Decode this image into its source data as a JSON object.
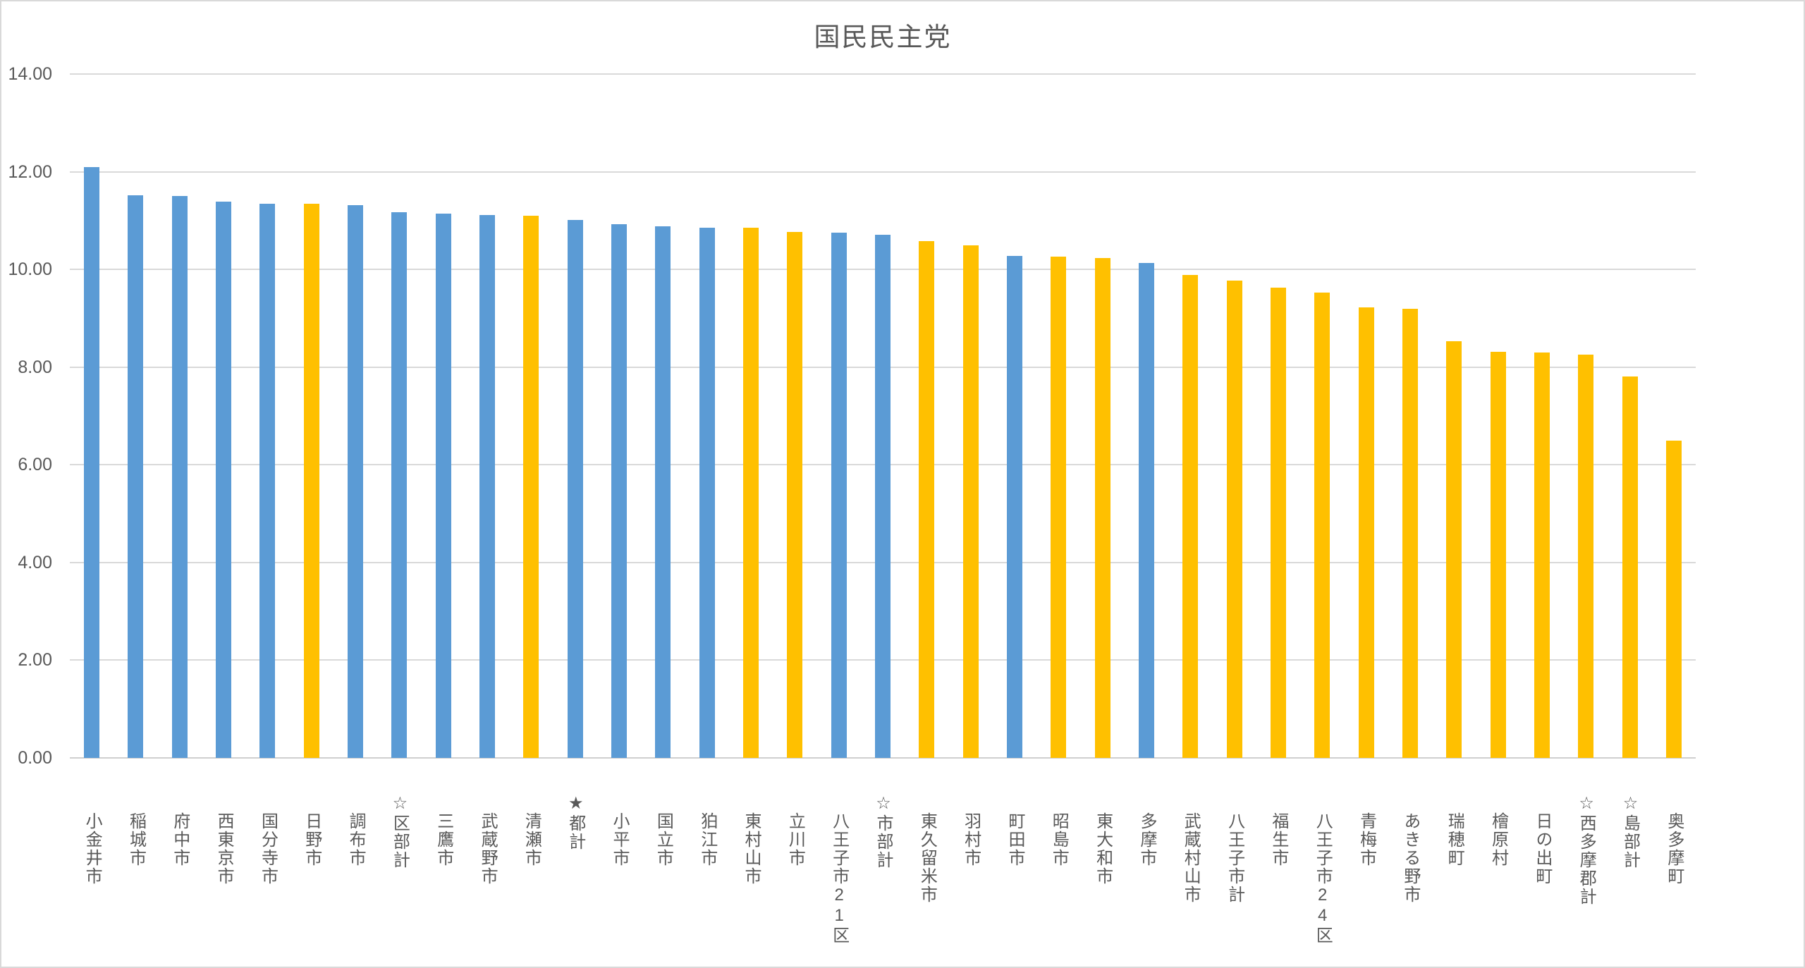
{
  "chart_data": {
    "type": "bar",
    "title": "国民民主党",
    "xlabel": "",
    "ylabel": "",
    "ylim": [
      0,
      14
    ],
    "ytick_step": 2,
    "ytick_labels": [
      "0.00",
      "2.00",
      "4.00",
      "6.00",
      "8.00",
      "10.00",
      "12.00",
      "14.00"
    ],
    "grid": true,
    "legend_position": "none",
    "palette": {
      "blue": "#5b9bd5",
      "gold": "#ffc000"
    },
    "categories": [
      "小金井市",
      "稲城市",
      "府中市",
      "西東京市",
      "国分寺市",
      "日野市",
      "調布市",
      "☆区部計",
      "三鷹市",
      "武蔵野市",
      "清瀬市",
      "★都計",
      "小平市",
      "国立市",
      "狛江市",
      "東村山市",
      "立川市",
      "八王子市21区",
      "☆市部計",
      "東久留米市",
      "羽村市",
      "町田市",
      "昭島市",
      "東大和市",
      "多摩市",
      "武蔵村山市",
      "八王子市計",
      "福生市",
      "八王子市24区",
      "青梅市",
      "あきる野市",
      "瑞穂町",
      "檜原村",
      "日の出町",
      "☆西多摩郡計",
      "☆島部計",
      "奥多摩町"
    ],
    "values": [
      12.1,
      11.52,
      11.51,
      11.39,
      11.34,
      11.34,
      11.32,
      11.17,
      11.14,
      11.11,
      11.1,
      11.01,
      10.92,
      10.88,
      10.86,
      10.85,
      10.76,
      10.75,
      10.71,
      10.58,
      10.49,
      10.27,
      10.26,
      10.24,
      10.13,
      9.88,
      9.77,
      9.62,
      9.52,
      9.22,
      9.19,
      8.53,
      8.31,
      8.3,
      8.26,
      7.81,
      6.49
    ],
    "bar_colors": [
      "blue",
      "blue",
      "blue",
      "blue",
      "blue",
      "gold",
      "blue",
      "blue",
      "blue",
      "blue",
      "gold",
      "blue",
      "blue",
      "blue",
      "blue",
      "gold",
      "gold",
      "blue",
      "blue",
      "gold",
      "gold",
      "blue",
      "gold",
      "gold",
      "blue",
      "gold",
      "gold",
      "gold",
      "gold",
      "gold",
      "gold",
      "gold",
      "gold",
      "gold",
      "gold",
      "gold",
      "gold"
    ]
  }
}
